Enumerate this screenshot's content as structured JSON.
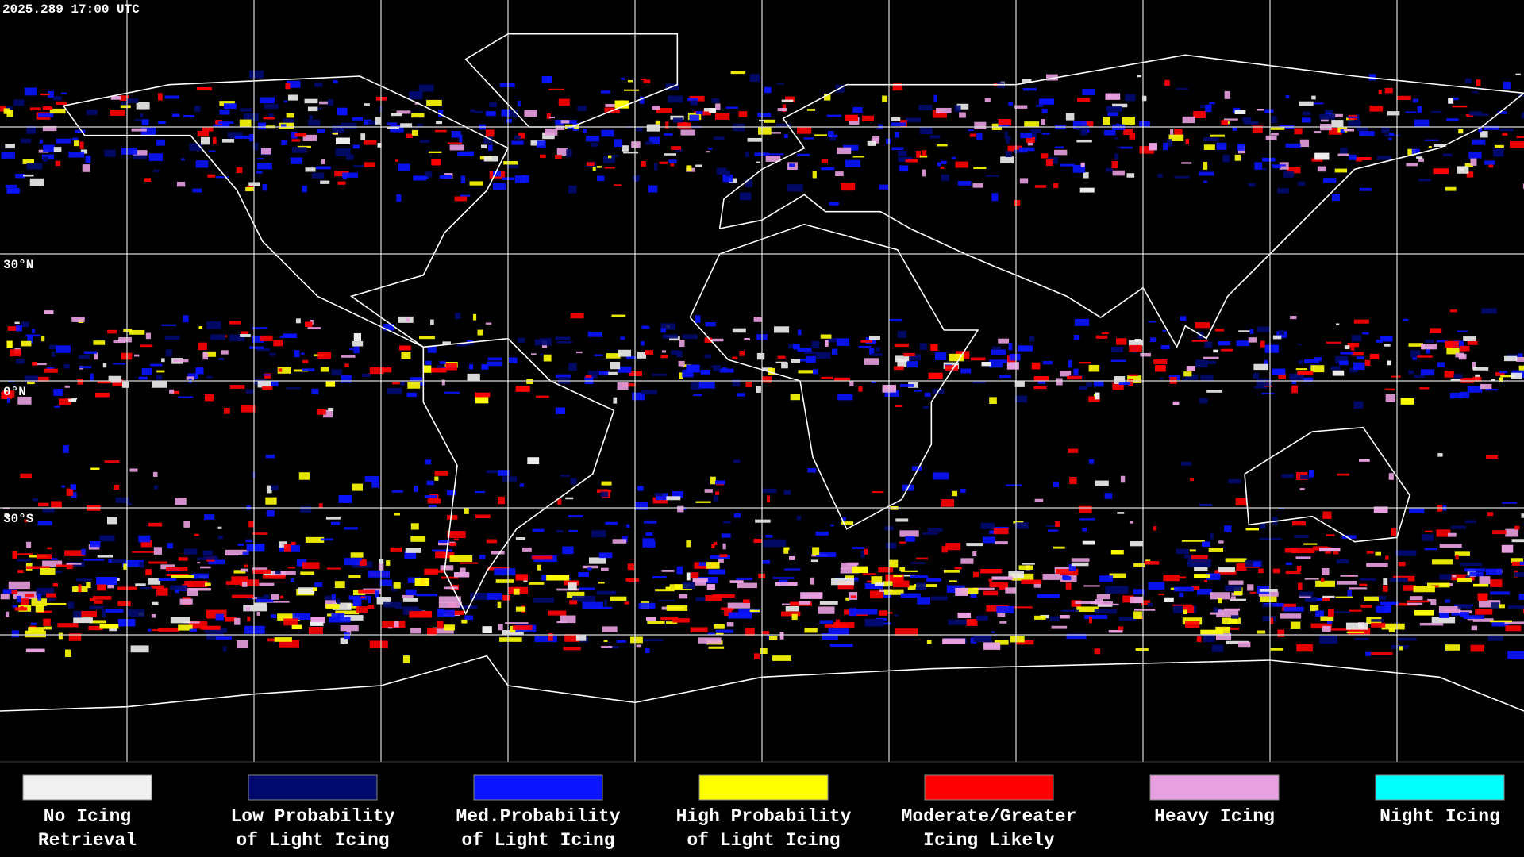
{
  "header": {
    "timestamp": "2025.289 17:00 UTC"
  },
  "map": {
    "latitude_labels": [
      "30°N",
      "0°N",
      "30°S"
    ]
  },
  "legend": {
    "items": [
      {
        "lines": [
          "No Icing",
          "Retrieval"
        ],
        "color": "#f0f0f0"
      },
      {
        "lines": [
          "Low Probability",
          "of Light Icing"
        ],
        "color": "#000a6e"
      },
      {
        "lines": [
          "Med.Probability",
          "of Light Icing"
        ],
        "color": "#0a14ff"
      },
      {
        "lines": [
          "High Probability",
          "of Light Icing"
        ],
        "color": "#ffff00"
      },
      {
        "lines": [
          "Moderate/Greater",
          "Icing Likely"
        ],
        "color": "#ff0000"
      },
      {
        "lines": [
          "Heavy Icing"
        ],
        "color": "#e8a0e0"
      },
      {
        "lines": [
          "Night Icing"
        ],
        "color": "#00ffff"
      }
    ]
  }
}
